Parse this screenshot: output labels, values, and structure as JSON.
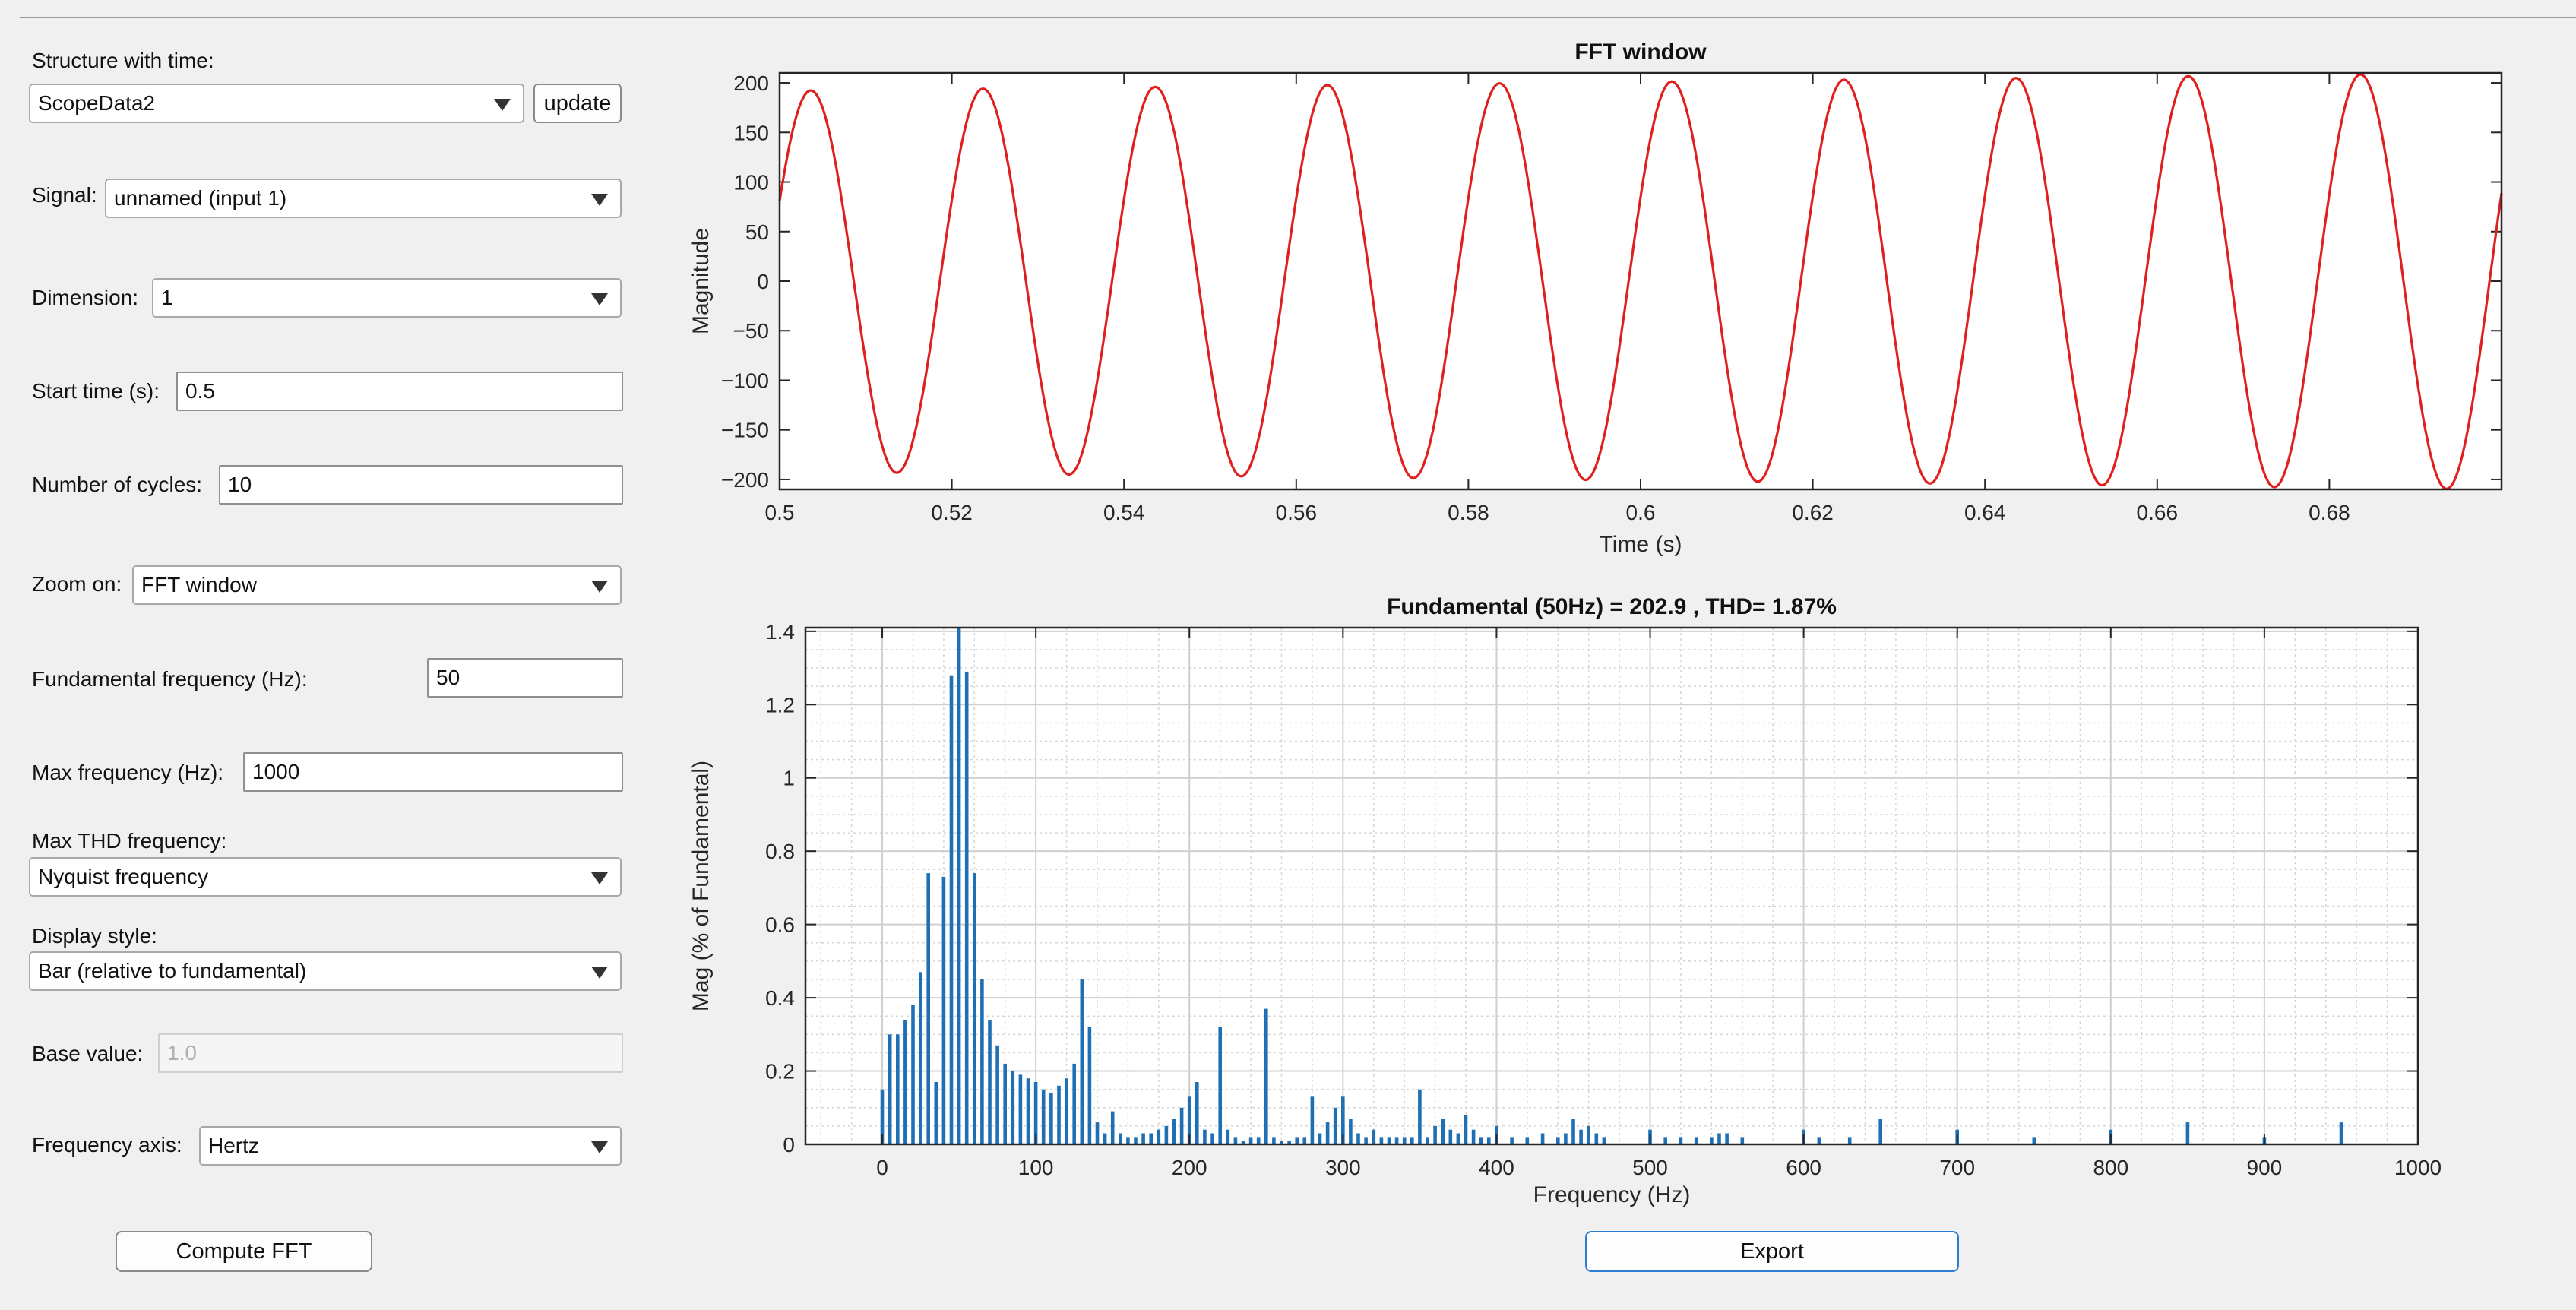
{
  "form": {
    "structure_label": "Structure with time:",
    "structure_value": "ScopeData2",
    "update_label": "update",
    "signal_label": "Signal:",
    "signal_value": "unnamed (input 1)",
    "dimension_label": "Dimension:",
    "dimension_value": "1",
    "start_time_label": "Start time (s):",
    "start_time_value": "0.5",
    "cycles_label": "Number of cycles:",
    "cycles_value": "10",
    "zoom_label": "Zoom on:",
    "zoom_value": "FFT window",
    "fund_freq_label": "Fundamental frequency (Hz):",
    "fund_freq_value": "50",
    "max_freq_label": "Max frequency (Hz):",
    "max_freq_value": "1000",
    "max_thd_label": "Max THD frequency:",
    "max_thd_value": "Nyquist frequency",
    "display_style_label": "Display style:",
    "display_style_value": "Bar (relative to fundamental)",
    "base_value_label": "Base value:",
    "base_value_value": "1.0",
    "freq_axis_label": "Frequency axis:",
    "freq_axis_value": "Hertz",
    "compute_label": "Compute FFT",
    "export_label": "Export"
  },
  "colors": {
    "signal_line": "#e01f1f",
    "bars": "#1f6fb5",
    "export_border": "#2a7fd4"
  },
  "chart_data": [
    {
      "type": "line",
      "title": "FFT window",
      "xlabel": "Time (s)",
      "ylabel": "Magnitude",
      "xlim": [
        0.5,
        0.7
      ],
      "ylim": [
        -210,
        210
      ],
      "xticks": [
        0.5,
        0.52,
        0.54,
        0.56,
        0.58,
        0.6,
        0.62,
        0.64,
        0.66,
        0.68
      ],
      "xtick_labels": [
        "0.5",
        "0.52",
        "0.54",
        "0.56",
        "0.58",
        "0.6",
        "0.62",
        "0.64",
        "0.66",
        "0.68"
      ],
      "yticks": [
        -200,
        -150,
        -100,
        -50,
        0,
        50,
        100,
        150,
        200
      ],
      "ytick_labels": [
        "−200",
        "−150",
        "−100",
        "−50",
        "0",
        "50",
        "100",
        "150",
        "200"
      ],
      "series": [
        {
          "frequency_hz": 50,
          "amplitude_start": 192,
          "amplitude_end": 210,
          "phase_start_deg": 25,
          "color": "#e01f1f"
        }
      ],
      "grid": false
    },
    {
      "type": "bar",
      "title": "Fundamental (50Hz) = 202.9 , THD= 1.87%",
      "xlabel": "Frequency (Hz)",
      "ylabel": "Mag (% of Fundamental)",
      "xlim": [
        -50,
        1000
      ],
      "ylim": [
        0,
        1.41
      ],
      "xticks": [
        0,
        100,
        200,
        300,
        400,
        500,
        600,
        700,
        800,
        900,
        1000
      ],
      "xtick_labels": [
        "0",
        "100",
        "200",
        "300",
        "400",
        "500",
        "600",
        "700",
        "800",
        "900",
        "1000"
      ],
      "yticks": [
        0,
        0.2,
        0.4,
        0.6,
        0.8,
        1,
        1.2,
        1.4
      ],
      "ytick_labels": [
        "0",
        "0.2",
        "0.4",
        "0.6",
        "0.8",
        "1",
        "1.2",
        "1.4"
      ],
      "grid": true,
      "minor_grid": true,
      "color": "#1f6fb5",
      "x": [
        0,
        5,
        10,
        15,
        20,
        25,
        30,
        35,
        40,
        45,
        50,
        55,
        60,
        65,
        70,
        75,
        80,
        85,
        90,
        95,
        100,
        105,
        110,
        115,
        120,
        125,
        130,
        135,
        140,
        145,
        150,
        155,
        160,
        165,
        170,
        175,
        180,
        185,
        190,
        195,
        200,
        205,
        210,
        215,
        220,
        225,
        230,
        235,
        240,
        245,
        250,
        255,
        260,
        265,
        270,
        275,
        280,
        285,
        290,
        295,
        300,
        305,
        310,
        315,
        320,
        325,
        330,
        335,
        340,
        345,
        350,
        355,
        360,
        365,
        370,
        375,
        380,
        385,
        390,
        395,
        400,
        410,
        420,
        430,
        440,
        445,
        450,
        455,
        460,
        465,
        470,
        500,
        510,
        520,
        530,
        540,
        545,
        550,
        560,
        600,
        610,
        630,
        650,
        700,
        750,
        800,
        850,
        900,
        950
      ],
      "values": [
        0.15,
        0.3,
        0.3,
        0.34,
        0.38,
        0.47,
        0.74,
        0.17,
        0.73,
        1.28,
        1.41,
        1.29,
        0.74,
        0.45,
        0.34,
        0.27,
        0.22,
        0.2,
        0.19,
        0.18,
        0.17,
        0.15,
        0.14,
        0.16,
        0.18,
        0.22,
        0.45,
        0.32,
        0.06,
        0.03,
        0.09,
        0.03,
        0.02,
        0.02,
        0.03,
        0.03,
        0.04,
        0.05,
        0.07,
        0.1,
        0.13,
        0.17,
        0.04,
        0.03,
        0.32,
        0.04,
        0.02,
        0.01,
        0.02,
        0.02,
        0.37,
        0.02,
        0.01,
        0.01,
        0.02,
        0.02,
        0.13,
        0.03,
        0.06,
        0.1,
        0.13,
        0.07,
        0.03,
        0.02,
        0.04,
        0.02,
        0.02,
        0.02,
        0.02,
        0.02,
        0.15,
        0.02,
        0.05,
        0.07,
        0.04,
        0.03,
        0.08,
        0.04,
        0.02,
        0.02,
        0.05,
        0.02,
        0.02,
        0.03,
        0.02,
        0.03,
        0.07,
        0.04,
        0.05,
        0.03,
        0.02,
        0.04,
        0.02,
        0.02,
        0.02,
        0.02,
        0.03,
        0.03,
        0.02,
        0.04,
        0.02,
        0.02,
        0.07,
        0.04,
        0.02,
        0.04,
        0.06,
        0.02,
        0.06
      ]
    }
  ]
}
